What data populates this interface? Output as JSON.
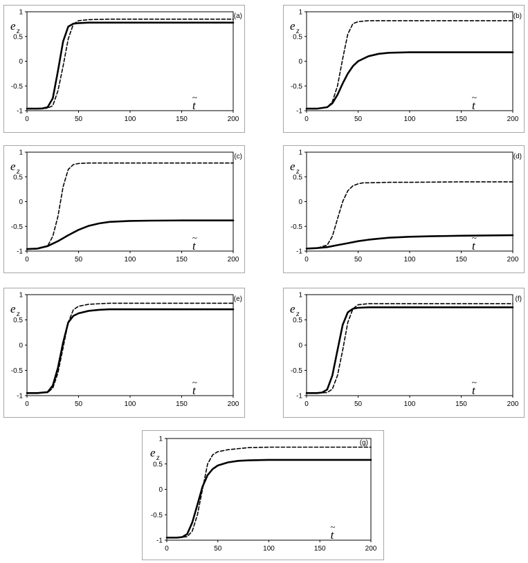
{
  "chart_data": [
    {
      "type": "line",
      "panel_label": "(a)",
      "ylabel": {
        "main": "e",
        "sub": "z"
      },
      "xlabel": {
        "main": "t",
        "accent": "~"
      },
      "xlim": [
        0,
        200
      ],
      "ylim": [
        -1,
        1
      ],
      "xticks": [
        "0",
        "50",
        "100",
        "150",
        "200"
      ],
      "yticks": [
        "-1",
        "-0.5",
        "0",
        "0.5",
        "1"
      ],
      "grid": false,
      "series": [
        {
          "style": "solid",
          "x": [
            0,
            10,
            15,
            20,
            25,
            30,
            35,
            40,
            45,
            50,
            60,
            80,
            100,
            150,
            200
          ],
          "y": [
            -0.96,
            -0.96,
            -0.955,
            -0.93,
            -0.75,
            -0.2,
            0.4,
            0.7,
            0.76,
            0.77,
            0.78,
            0.78,
            0.78,
            0.78,
            0.78
          ]
        },
        {
          "style": "dashed",
          "x": [
            0,
            10,
            20,
            25,
            30,
            35,
            40,
            45,
            50,
            60,
            80,
            100,
            150,
            200
          ],
          "y": [
            -0.96,
            -0.96,
            -0.95,
            -0.9,
            -0.6,
            -0.1,
            0.45,
            0.75,
            0.82,
            0.84,
            0.85,
            0.85,
            0.85,
            0.85
          ]
        }
      ]
    },
    {
      "type": "line",
      "panel_label": "(b)",
      "ylabel": {
        "main": "e",
        "sub": "z"
      },
      "xlabel": {
        "main": "t",
        "accent": "~"
      },
      "xlim": [
        0,
        200
      ],
      "ylim": [
        -1,
        1
      ],
      "xticks": [
        "0",
        "50",
        "100",
        "150",
        "200"
      ],
      "yticks": [
        "-1",
        "-0.5",
        "0",
        "0.5",
        "1"
      ],
      "grid": false,
      "series": [
        {
          "style": "solid",
          "x": [
            0,
            10,
            20,
            25,
            30,
            35,
            40,
            45,
            50,
            60,
            70,
            80,
            100,
            120,
            150,
            200
          ],
          "y": [
            -0.96,
            -0.96,
            -0.93,
            -0.85,
            -0.68,
            -0.45,
            -0.25,
            -0.1,
            0.0,
            0.1,
            0.15,
            0.17,
            0.18,
            0.18,
            0.18,
            0.18
          ]
        },
        {
          "style": "dashed",
          "x": [
            0,
            10,
            20,
            25,
            30,
            35,
            40,
            45,
            50,
            60,
            80,
            100,
            150,
            200
          ],
          "y": [
            -0.96,
            -0.96,
            -0.93,
            -0.82,
            -0.5,
            0.05,
            0.55,
            0.76,
            0.8,
            0.82,
            0.82,
            0.82,
            0.82,
            0.82
          ]
        }
      ]
    },
    {
      "type": "line",
      "panel_label": "(c)",
      "ylabel": {
        "main": "e",
        "sub": "z"
      },
      "xlabel": {
        "main": "t",
        "accent": "~"
      },
      "xlim": [
        0,
        200
      ],
      "ylim": [
        -1,
        1
      ],
      "xticks": [
        "0",
        "50",
        "100",
        "150",
        "200"
      ],
      "yticks": [
        "-1",
        "-0.5",
        "0",
        "0.5",
        "1"
      ],
      "grid": false,
      "series": [
        {
          "style": "solid",
          "x": [
            0,
            10,
            20,
            30,
            40,
            50,
            60,
            70,
            80,
            100,
            120,
            150,
            200
          ],
          "y": [
            -0.96,
            -0.95,
            -0.9,
            -0.8,
            -0.68,
            -0.57,
            -0.49,
            -0.44,
            -0.41,
            -0.39,
            -0.385,
            -0.38,
            -0.38
          ]
        },
        {
          "style": "dashed",
          "x": [
            0,
            10,
            20,
            25,
            30,
            35,
            40,
            45,
            50,
            60,
            80,
            100,
            150,
            200
          ],
          "y": [
            -0.96,
            -0.96,
            -0.9,
            -0.7,
            -0.3,
            0.3,
            0.65,
            0.75,
            0.77,
            0.78,
            0.78,
            0.78,
            0.78,
            0.78
          ]
        }
      ]
    },
    {
      "type": "line",
      "panel_label": "(d)",
      "ylabel": {
        "main": "e",
        "sub": "z"
      },
      "xlabel": {
        "main": "t",
        "accent": "~"
      },
      "xlim": [
        0,
        200
      ],
      "ylim": [
        -1,
        1
      ],
      "xticks": [
        "0",
        "50",
        "100",
        "150",
        "200"
      ],
      "yticks": [
        "-1",
        "-0.5",
        "0",
        "0.5",
        "1"
      ],
      "grid": false,
      "series": [
        {
          "style": "solid",
          "x": [
            0,
            10,
            20,
            30,
            40,
            50,
            60,
            70,
            80,
            100,
            120,
            150,
            200
          ],
          "y": [
            -0.95,
            -0.94,
            -0.92,
            -0.88,
            -0.84,
            -0.8,
            -0.77,
            -0.75,
            -0.73,
            -0.71,
            -0.7,
            -0.69,
            -0.68
          ]
        },
        {
          "style": "dashed",
          "x": [
            0,
            10,
            20,
            25,
            30,
            35,
            40,
            45,
            50,
            55,
            60,
            80,
            100,
            150,
            200
          ],
          "y": [
            -0.95,
            -0.94,
            -0.88,
            -0.7,
            -0.35,
            0.0,
            0.22,
            0.32,
            0.36,
            0.38,
            0.38,
            0.39,
            0.39,
            0.4,
            0.4
          ]
        }
      ]
    },
    {
      "type": "line",
      "panel_label": "(e)",
      "ylabel": {
        "main": "e",
        "sub": "z"
      },
      "xlabel": {
        "main": "t",
        "accent": "~"
      },
      "xlim": [
        0,
        200
      ],
      "ylim": [
        -1,
        1
      ],
      "xticks": [
        "0",
        "50",
        "100",
        "150",
        "200"
      ],
      "yticks": [
        "-1",
        "-0.5",
        "0",
        "0.5",
        "1"
      ],
      "grid": false,
      "series": [
        {
          "style": "solid",
          "x": [
            0,
            10,
            20,
            25,
            30,
            35,
            40,
            45,
            50,
            60,
            70,
            80,
            100,
            150,
            200
          ],
          "y": [
            -0.95,
            -0.95,
            -0.93,
            -0.8,
            -0.45,
            0.05,
            0.45,
            0.58,
            0.63,
            0.68,
            0.7,
            0.71,
            0.71,
            0.71,
            0.71
          ]
        },
        {
          "style": "dashed",
          "x": [
            0,
            10,
            20,
            25,
            30,
            35,
            40,
            45,
            50,
            60,
            80,
            100,
            150,
            200
          ],
          "y": [
            -0.95,
            -0.95,
            -0.94,
            -0.85,
            -0.55,
            -0.05,
            0.45,
            0.7,
            0.77,
            0.81,
            0.83,
            0.83,
            0.83,
            0.83
          ]
        }
      ]
    },
    {
      "type": "line",
      "panel_label": "(f)",
      "ylabel": {
        "main": "e",
        "sub": "z"
      },
      "xlabel": {
        "main": "t",
        "accent": "~"
      },
      "xlim": [
        0,
        200
      ],
      "ylim": [
        -1,
        1
      ],
      "xticks": [
        "0",
        "50",
        "100",
        "150",
        "200"
      ],
      "yticks": [
        "-1",
        "-0.5",
        "0",
        "0.5",
        "1"
      ],
      "grid": false,
      "series": [
        {
          "style": "solid",
          "x": [
            0,
            10,
            15,
            20,
            25,
            30,
            35,
            40,
            45,
            50,
            60,
            80,
            100,
            150,
            200
          ],
          "y": [
            -0.95,
            -0.95,
            -0.94,
            -0.88,
            -0.6,
            -0.1,
            0.4,
            0.65,
            0.72,
            0.74,
            0.75,
            0.75,
            0.75,
            0.75,
            0.75
          ]
        },
        {
          "style": "dashed",
          "x": [
            0,
            10,
            20,
            25,
            30,
            35,
            40,
            45,
            50,
            60,
            80,
            100,
            150,
            200
          ],
          "y": [
            -0.95,
            -0.95,
            -0.94,
            -0.87,
            -0.6,
            -0.1,
            0.45,
            0.72,
            0.8,
            0.82,
            0.82,
            0.82,
            0.82,
            0.82
          ]
        }
      ]
    },
    {
      "type": "line",
      "panel_label": "(g)",
      "ylabel": {
        "main": "e",
        "sub": "z"
      },
      "xlabel": {
        "main": "t",
        "accent": "~"
      },
      "xlim": [
        0,
        200
      ],
      "ylim": [
        -1,
        1
      ],
      "xticks": [
        "0",
        "50",
        "100",
        "150",
        "200"
      ],
      "yticks": [
        "-1",
        "-0.5",
        "0",
        "0.5",
        "1"
      ],
      "grid": false,
      "series": [
        {
          "style": "solid",
          "x": [
            0,
            10,
            15,
            20,
            25,
            30,
            35,
            40,
            45,
            50,
            60,
            70,
            80,
            100,
            120,
            150,
            200
          ],
          "y": [
            -0.95,
            -0.95,
            -0.94,
            -0.88,
            -0.65,
            -0.3,
            0.05,
            0.28,
            0.4,
            0.47,
            0.53,
            0.56,
            0.57,
            0.58,
            0.58,
            0.58,
            0.58
          ]
        },
        {
          "style": "dashed",
          "x": [
            0,
            10,
            20,
            25,
            30,
            35,
            40,
            45,
            50,
            60,
            80,
            100,
            150,
            200
          ],
          "y": [
            -0.95,
            -0.95,
            -0.93,
            -0.82,
            -0.5,
            0.0,
            0.5,
            0.68,
            0.74,
            0.78,
            0.82,
            0.83,
            0.83,
            0.83
          ]
        }
      ]
    }
  ]
}
